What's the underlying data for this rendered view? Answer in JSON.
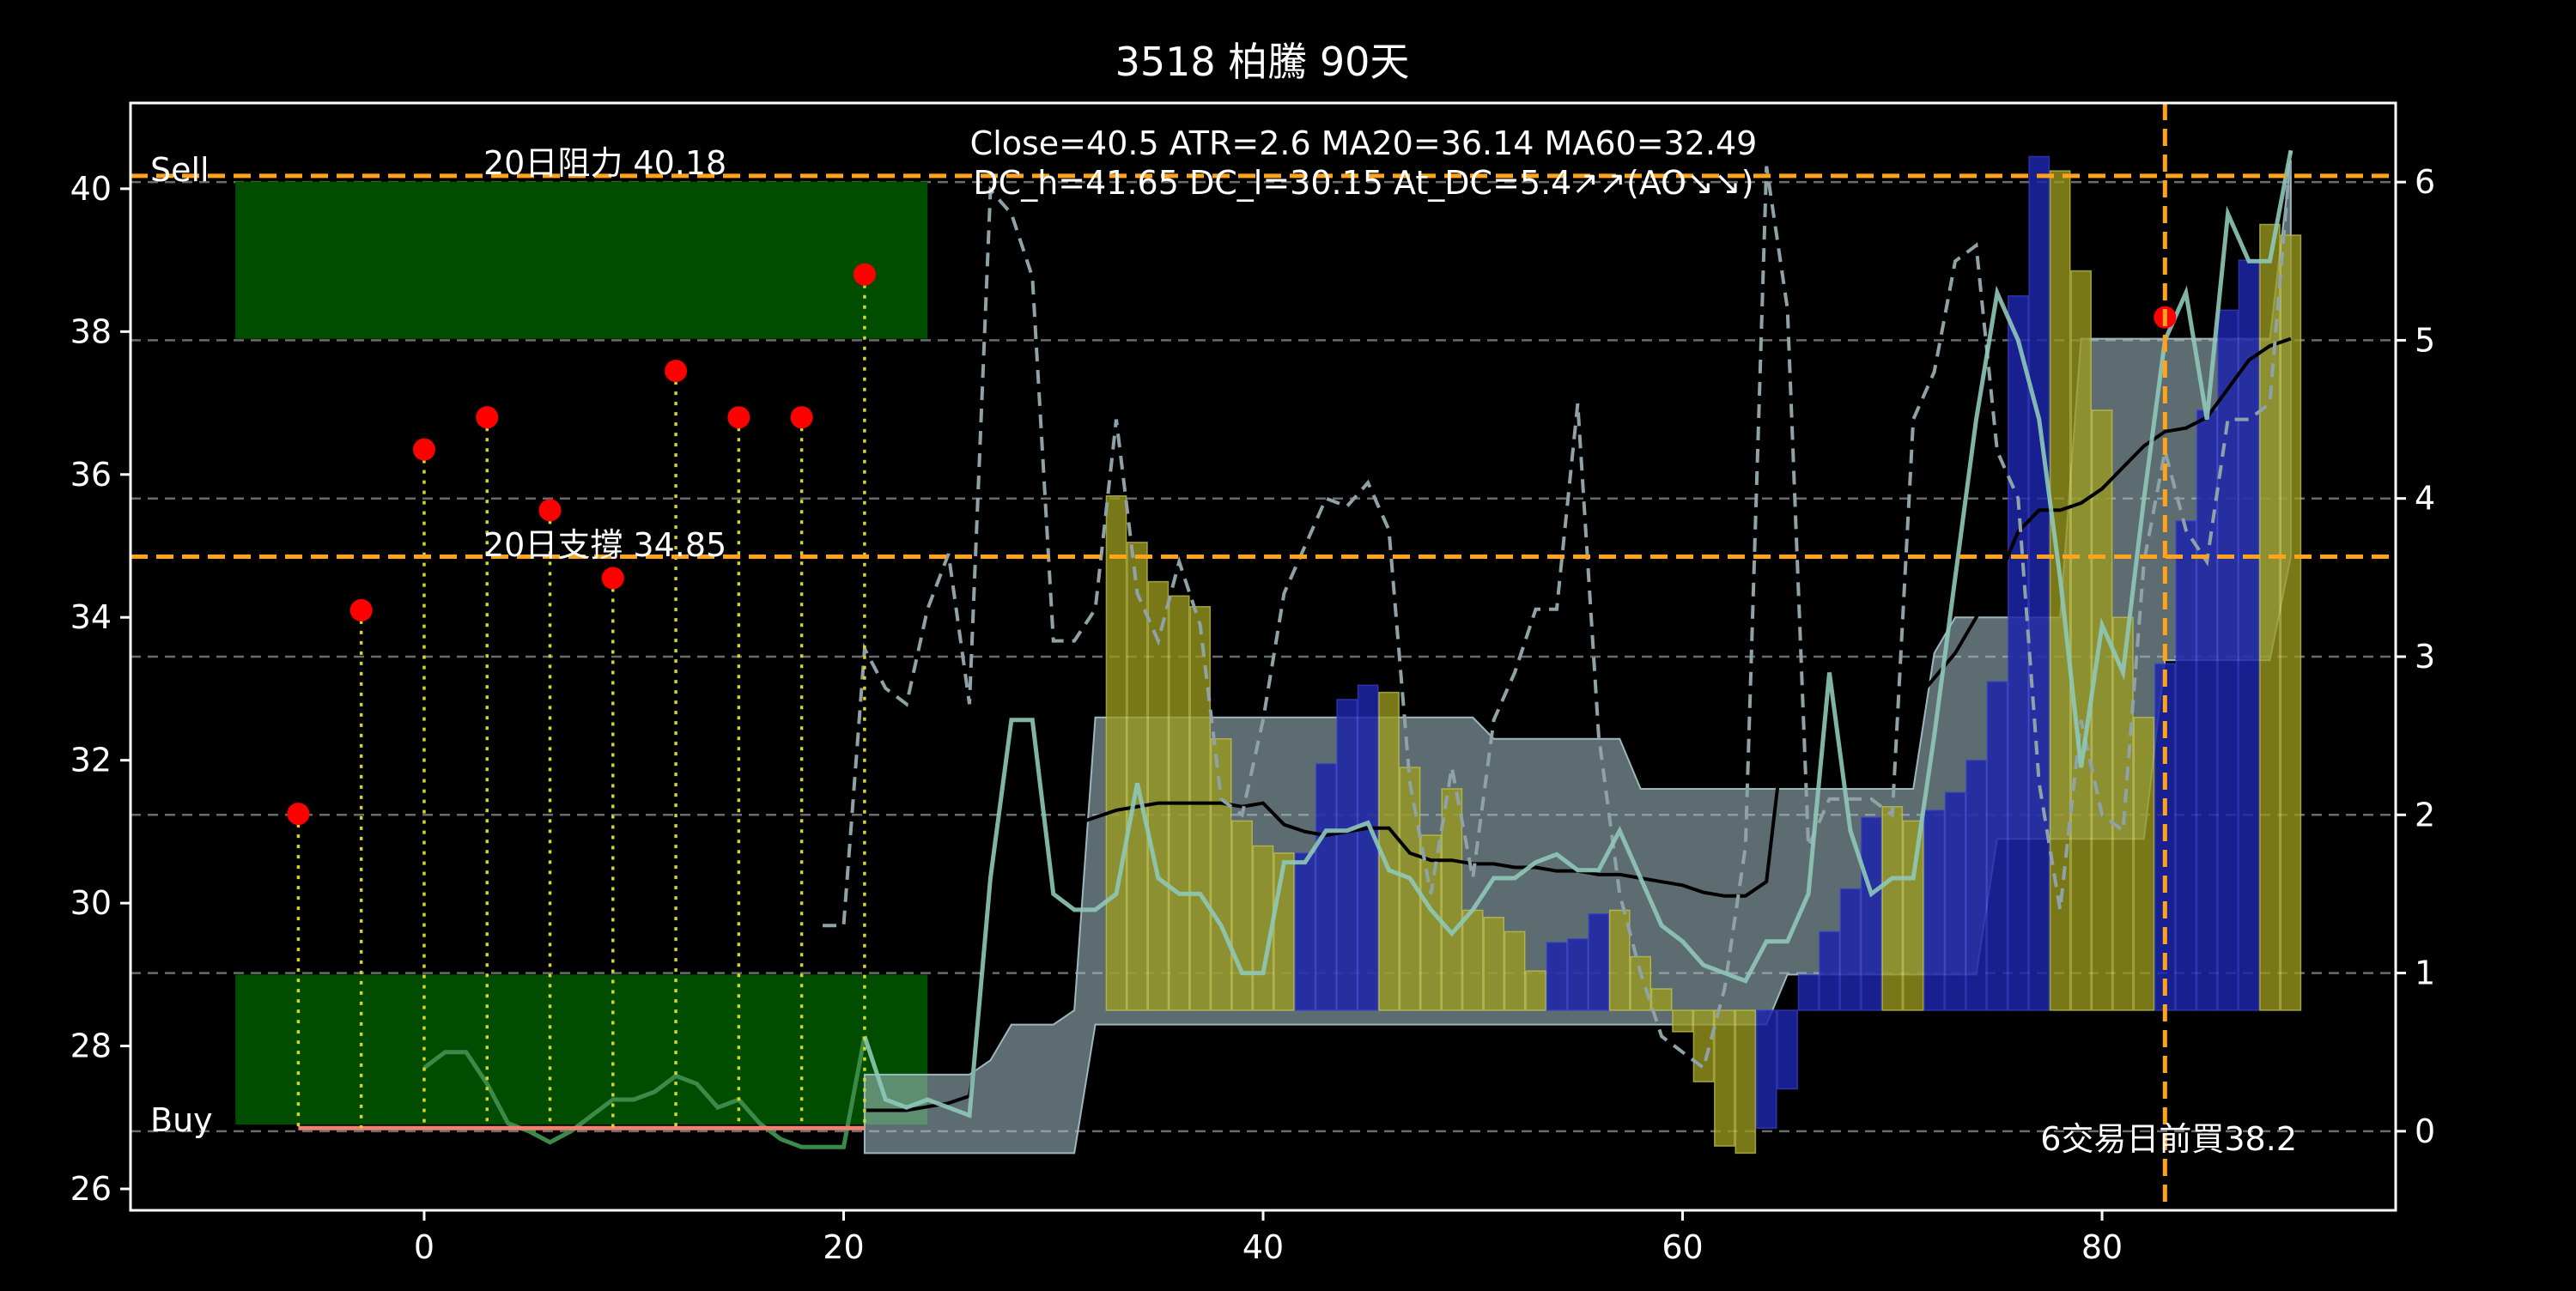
{
  "chart_data": {
    "type": "line",
    "title": "3518 柏騰 90天",
    "info_line1": "Close=40.5 ATR=2.6 MA20=36.14 MA60=32.49",
    "info_line2": "DC_h=41.65 DC_l=30.15 At_DC=5.4↗↗(AO↘↘)",
    "sell_label": "Sell",
    "buy_label": "Buy",
    "resistance_label": "20日阻力 40.18",
    "support_label": "20日支撐 34.85",
    "trade_note": "6交易日前買38.2",
    "resistance": 40.18,
    "support": 34.85,
    "buy_marker": {
      "x": 83,
      "y": 38.2
    },
    "trade_vline_x": 83,
    "xlim": [
      -14,
      94
    ],
    "ylim": [
      25.7,
      41.2
    ],
    "y2lim": [
      -0.5,
      6.5
    ],
    "xticks": [
      0,
      20,
      40,
      60,
      80
    ],
    "yticks": [
      26,
      28,
      30,
      32,
      34,
      36,
      38,
      40
    ],
    "y2ticks": [
      0,
      1,
      2,
      3,
      4,
      5,
      6
    ],
    "grid": "horizontal dashed at right-axis ticks",
    "colors": {
      "background": "#000000",
      "axes": "#ffffff",
      "zone": "#004d00",
      "hline": "#ffa31a",
      "stem": "#d4d42a",
      "dot": "#ff0000",
      "bullish_bar": "#9a9a20",
      "bearish_bar": "#1c24a8",
      "band": "#a9c4cc",
      "ma": "#000000",
      "indicator": "#8ec8b8",
      "dashed": "#8ea2a8",
      "green_line": "#3c8a4a",
      "salmon_line": "#f08070"
    },
    "zones": [
      {
        "name": "Sell zone",
        "x": [
          -9,
          24
        ],
        "y": [
          37.9,
          40.1
        ]
      },
      {
        "name": "Buy zone",
        "x": [
          -9,
          24
        ],
        "y": [
          26.9,
          29.0
        ]
      }
    ],
    "stem_points": [
      {
        "x": -6,
        "y": 31.25
      },
      {
        "x": -3,
        "y": 34.1
      },
      {
        "x": 0,
        "y": 36.35
      },
      {
        "x": 3,
        "y": 36.8
      },
      {
        "x": 6,
        "y": 35.5
      },
      {
        "x": 9,
        "y": 34.55
      },
      {
        "x": 12,
        "y": 37.45
      },
      {
        "x": 15,
        "y": 36.8
      },
      {
        "x": 18,
        "y": 36.8
      },
      {
        "x": 21,
        "y": 38.8
      }
    ],
    "stem_base": 26.85,
    "baseline_segment": {
      "x": [
        -6,
        21
      ],
      "y": 26.85
    },
    "bars": {
      "base": 28.5,
      "x": [
        33,
        34,
        35,
        36,
        37,
        38,
        39,
        40,
        41,
        42,
        43,
        44,
        45,
        46,
        47,
        48,
        49,
        50,
        51,
        52,
        53,
        54,
        55,
        56,
        57,
        58,
        59,
        60,
        61,
        62,
        63,
        64,
        65,
        66,
        67,
        68,
        69,
        70,
        71,
        72,
        73,
        74,
        75,
        76,
        77,
        78,
        79,
        80,
        81,
        82,
        83,
        84,
        85,
        86,
        87,
        88,
        89
      ],
      "y": [
        35.7,
        35.05,
        34.5,
        34.3,
        34.15,
        32.3,
        31.15,
        30.8,
        30.7,
        30.7,
        31.95,
        32.85,
        33.05,
        32.95,
        31.9,
        30.95,
        31.6,
        29.9,
        29.8,
        29.6,
        29.05,
        29.45,
        29.5,
        29.85,
        29.9,
        29.25,
        28.8,
        28.2,
        27.5,
        26.6,
        26.5,
        26.85,
        27.4,
        29.0,
        29.6,
        30.2,
        31.2,
        31.35,
        31.15,
        31.3,
        31.55,
        32.0,
        33.1,
        38.5,
        40.45,
        40.25,
        38.85,
        36.9,
        34.0,
        32.6,
        33.35,
        35.35,
        36.9,
        38.3,
        39.0,
        39.5,
        39.35
      ],
      "kind": [
        "u",
        "u",
        "u",
        "u",
        "u",
        "u",
        "u",
        "u",
        "u",
        "d",
        "d",
        "d",
        "d",
        "u",
        "u",
        "u",
        "u",
        "u",
        "u",
        "u",
        "u",
        "d",
        "d",
        "d",
        "u",
        "u",
        "u",
        "u",
        "u",
        "u",
        "u",
        "d",
        "d",
        "d",
        "d",
        "d",
        "d",
        "u",
        "u",
        "d",
        "d",
        "d",
        "d",
        "d",
        "d",
        "u",
        "u",
        "u",
        "u",
        "u",
        "d",
        "d",
        "d",
        "d",
        "d",
        "u",
        "u"
      ]
    },
    "series": [
      {
        "name": "",
        "axis": "left",
        "style": "band",
        "x": [
          21,
          22,
          23,
          24,
          25,
          26,
          27,
          28,
          29,
          30,
          31,
          32,
          33,
          34,
          35,
          36,
          37,
          38,
          39,
          40,
          41,
          42,
          43,
          44,
          45,
          46,
          47,
          48,
          49,
          50,
          51,
          52,
          53,
          54,
          55,
          56,
          57,
          58,
          59,
          60,
          61,
          62,
          63,
          64,
          65,
          66,
          67,
          68,
          69,
          70,
          71,
          72,
          73,
          74,
          75,
          76,
          77,
          78,
          79,
          80,
          81,
          82,
          83,
          84,
          85,
          86,
          87,
          88,
          89
        ],
        "upper": [
          27.6,
          27.6,
          27.6,
          27.6,
          27.6,
          27.6,
          27.8,
          28.3,
          28.3,
          28.3,
          28.5,
          32.6,
          32.6,
          32.6,
          32.6,
          32.6,
          32.6,
          32.6,
          32.6,
          32.6,
          32.6,
          32.6,
          32.6,
          32.6,
          32.6,
          32.6,
          32.6,
          32.6,
          32.6,
          32.6,
          32.3,
          32.3,
          32.3,
          32.3,
          32.3,
          32.3,
          32.3,
          31.6,
          31.6,
          31.6,
          31.6,
          31.6,
          31.6,
          31.6,
          31.6,
          31.6,
          31.6,
          31.6,
          31.6,
          31.6,
          31.6,
          33.5,
          34.0,
          34.0,
          34.0,
          34.0,
          34.0,
          34.0,
          37.9,
          37.9,
          37.9,
          37.9,
          37.9,
          37.9,
          37.9,
          37.9,
          37.9,
          37.9,
          40.4
        ],
        "lower": [
          26.5,
          26.5,
          26.5,
          26.5,
          26.5,
          26.5,
          26.5,
          26.5,
          26.5,
          26.5,
          26.5,
          28.3,
          28.3,
          28.3,
          28.3,
          28.3,
          28.3,
          28.3,
          28.3,
          28.3,
          28.3,
          28.3,
          28.3,
          28.3,
          28.3,
          28.3,
          28.3,
          28.3,
          28.3,
          28.3,
          28.3,
          28.3,
          28.3,
          28.3,
          28.3,
          28.3,
          28.3,
          28.3,
          28.3,
          28.3,
          28.3,
          28.3,
          28.3,
          28.3,
          29.0,
          29.0,
          29.0,
          29.0,
          29.0,
          29.0,
          29.0,
          29.0,
          29.0,
          29.0,
          30.9,
          30.9,
          30.9,
          30.9,
          30.9,
          30.9,
          30.9,
          30.9,
          33.4,
          33.4,
          33.4,
          33.4,
          33.4,
          33.4,
          34.85
        ]
      },
      {
        "name": "",
        "axis": "left",
        "style": "ma",
        "x": [
          21,
          22,
          23,
          24,
          25,
          26,
          27,
          28,
          29,
          30,
          31,
          32,
          33,
          34,
          35,
          36,
          37,
          38,
          39,
          40,
          41,
          42,
          43,
          44,
          45,
          46,
          47,
          48,
          49,
          50,
          51,
          52,
          53,
          54,
          55,
          56,
          57,
          58,
          59,
          60,
          61,
          62,
          63,
          64,
          65,
          66,
          67,
          68,
          69,
          70,
          71,
          72,
          73,
          74,
          75,
          76,
          77,
          78,
          79,
          80,
          81,
          82,
          83,
          84,
          85,
          86,
          87,
          88,
          89
        ],
        "y": [
          27.1,
          27.1,
          27.1,
          27.15,
          27.2,
          27.3,
          29.0,
          30.7,
          31.0,
          31.0,
          31.1,
          31.2,
          31.3,
          31.35,
          31.4,
          31.4,
          31.4,
          31.4,
          31.35,
          31.4,
          31.1,
          31.0,
          30.95,
          31.0,
          31.05,
          31.05,
          30.7,
          30.6,
          30.6,
          30.55,
          30.55,
          30.5,
          30.5,
          30.45,
          30.45,
          30.4,
          30.4,
          30.35,
          30.3,
          30.25,
          30.15,
          30.1,
          30.1,
          30.3,
          32.8,
          32.65,
          32.6,
          32.6,
          32.6,
          32.65,
          32.8,
          33.15,
          33.5,
          34.0,
          34.5,
          35.2,
          35.5,
          35.5,
          35.6,
          35.8,
          36.1,
          36.4,
          36.6,
          36.65,
          36.8,
          37.2,
          37.6,
          37.8,
          37.9
        ]
      },
      {
        "name": "",
        "axis": "right",
        "style": "solid",
        "x": [
          0,
          1,
          2,
          3,
          4,
          5,
          6,
          7,
          8,
          9,
          10,
          11,
          12,
          13,
          14,
          15,
          16,
          17,
          18,
          19,
          20,
          21,
          22,
          23,
          24,
          25,
          26,
          27,
          28,
          29,
          30,
          31,
          32,
          33,
          34,
          35,
          36,
          37,
          38,
          39,
          40,
          41,
          42,
          43,
          44,
          45,
          46,
          47,
          48,
          49,
          50,
          51,
          52,
          53,
          54,
          55,
          56,
          57,
          58,
          59,
          60,
          61,
          62,
          63,
          64,
          65,
          66,
          67,
          68,
          69,
          70,
          71,
          72,
          73,
          74,
          75,
          76,
          77,
          78,
          79,
          80,
          81,
          82,
          83,
          84,
          85,
          86,
          87,
          88,
          89
        ],
        "y": [
          0.4,
          0.5,
          0.5,
          0.3,
          0.05,
          0.0,
          -0.07,
          0.0,
          0.1,
          0.2,
          0.2,
          0.25,
          0.35,
          0.3,
          0.15,
          0.2,
          0.05,
          -0.05,
          -0.1,
          -0.1,
          -0.1,
          0.6,
          0.2,
          0.15,
          0.2,
          0.15,
          0.1,
          1.6,
          2.6,
          2.6,
          1.5,
          1.4,
          1.4,
          1.5,
          2.2,
          1.6,
          1.5,
          1.5,
          1.3,
          1.0,
          1.0,
          1.7,
          1.7,
          1.9,
          1.9,
          1.95,
          1.65,
          1.6,
          1.4,
          1.25,
          1.4,
          1.6,
          1.6,
          1.7,
          1.75,
          1.65,
          1.65,
          1.9,
          1.6,
          1.3,
          1.2,
          1.05,
          1.0,
          0.95,
          1.2,
          1.2,
          1.5,
          2.9,
          1.9,
          1.5,
          1.6,
          1.6,
          2.5,
          3.5,
          4.5,
          5.3,
          5.0,
          4.5,
          3.5,
          2.3,
          3.2,
          2.9,
          4.0,
          5.0,
          5.3,
          4.5,
          5.8,
          5.5,
          5.5,
          6.2
        ]
      },
      {
        "name": "",
        "axis": "right",
        "style": "dashed",
        "x": [
          19,
          20,
          21,
          22,
          23,
          24,
          25,
          26,
          27,
          28,
          29,
          30,
          31,
          32,
          33,
          34,
          35,
          36,
          37,
          38,
          39,
          40,
          41,
          42,
          43,
          44,
          45,
          46,
          47,
          48,
          49,
          50,
          51,
          52,
          53,
          54,
          55,
          56,
          57,
          58,
          59,
          60,
          61,
          62,
          63,
          64,
          65,
          66,
          67,
          68,
          69,
          70,
          71,
          72,
          73,
          74,
          75,
          76,
          77,
          78,
          79,
          80,
          81,
          82,
          83,
          84,
          85,
          86,
          87,
          88,
          89
        ],
        "y": [
          1.3,
          1.3,
          3.05,
          2.8,
          2.7,
          3.3,
          3.65,
          2.7,
          5.95,
          5.8,
          5.4,
          3.1,
          3.1,
          3.3,
          4.5,
          3.4,
          3.1,
          3.6,
          3.2,
          2.1,
          2.0,
          2.6,
          3.4,
          3.7,
          4.0,
          3.95,
          4.1,
          3.8,
          2.2,
          1.5,
          2.3,
          1.6,
          2.6,
          2.9,
          3.3,
          3.3,
          4.6,
          2.5,
          1.5,
          1.0,
          0.6,
          0.5,
          0.4,
          0.9,
          1.8,
          6.1,
          5.2,
          1.8,
          2.1,
          2.1,
          2.1,
          2.0,
          4.5,
          4.8,
          5.5,
          5.6,
          4.3,
          4.0,
          2.2,
          1.4,
          2.6,
          2.0,
          1.9,
          3.6,
          4.3,
          3.8,
          3.6,
          4.5,
          4.5,
          4.6,
          6.2
        ]
      }
    ]
  }
}
